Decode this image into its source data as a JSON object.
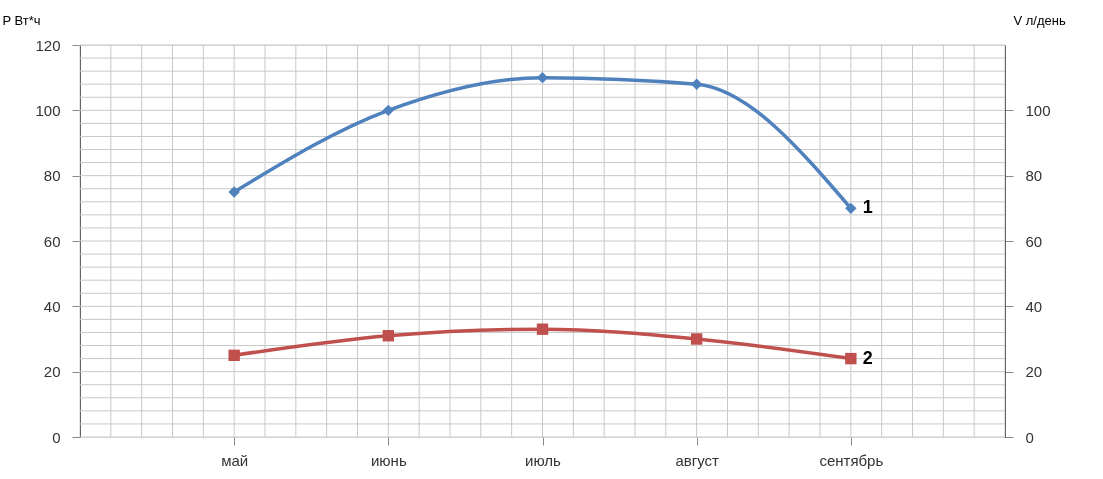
{
  "chart_data": {
    "type": "line",
    "categories": [
      "май",
      "июнь",
      "июль",
      "август",
      "сентябрь"
    ],
    "ylabel": "P Вт*ч",
    "y2label": "V л/день",
    "ylim": [
      0,
      120
    ],
    "yticks": [
      0,
      20,
      40,
      60,
      80,
      100,
      120
    ],
    "y2lim": [
      0,
      120
    ],
    "y2ticks": [
      0,
      20,
      40,
      60,
      80,
      100
    ],
    "grid": true,
    "line_style": "solid",
    "series": [
      {
        "name": "1",
        "color": "#4f81bd",
        "marker": "diamond",
        "values": [
          75,
          100,
          110,
          108,
          70
        ]
      },
      {
        "name": "2",
        "color": "#c0504d",
        "marker": "square",
        "axis": "y2",
        "values": [
          25,
          31,
          33,
          30,
          24
        ]
      }
    ]
  }
}
